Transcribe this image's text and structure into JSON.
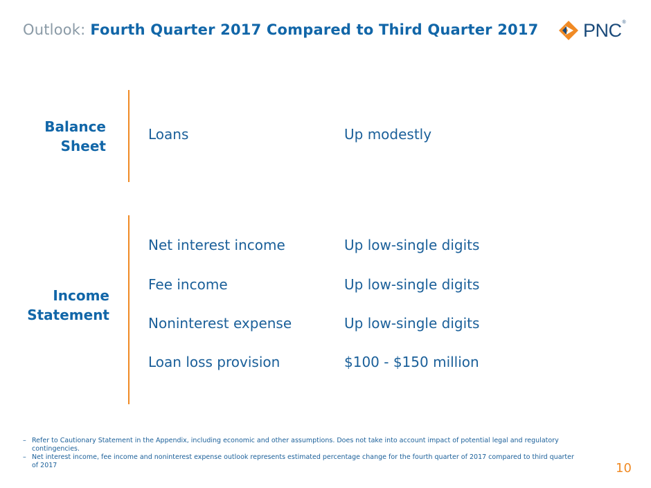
{
  "header": {
    "title_prefix": "Outlook:",
    "title_main": "Fourth Quarter 2017 Compared to Third Quarter 2017",
    "logo_text": "PNC",
    "logo_mark": "®"
  },
  "sections": {
    "balance_sheet": {
      "label_line1": "Balance",
      "label_line2": "Sheet",
      "rows": [
        {
          "item": "Loans",
          "value": "Up modestly"
        }
      ]
    },
    "income_statement": {
      "label_line1": "Income",
      "label_line2": "Statement",
      "rows": [
        {
          "item": "Net interest income",
          "value": "Up low-single digits"
        },
        {
          "item": "Fee income",
          "value": "Up low-single digits"
        },
        {
          "item": "Noninterest expense",
          "value": "Up low-single digits"
        },
        {
          "item": "Loan loss provision",
          "value": "$100 - $150 million"
        }
      ]
    }
  },
  "footnotes": [
    "Refer to Cautionary Statement in the Appendix, including economic and other assumptions. Does not take into account impact of potential legal and regulatory contingencies.",
    "Net interest income, fee income and noninterest expense outlook represents estimated percentage change for the fourth quarter of 2017 compared to third quarter of 2017"
  ],
  "page_number": "10",
  "colors": {
    "title_blue": "#1166a8",
    "text_blue": "#1a5f99",
    "accent_orange": "#f08a24",
    "prefix_gray": "#8a9aa6"
  }
}
